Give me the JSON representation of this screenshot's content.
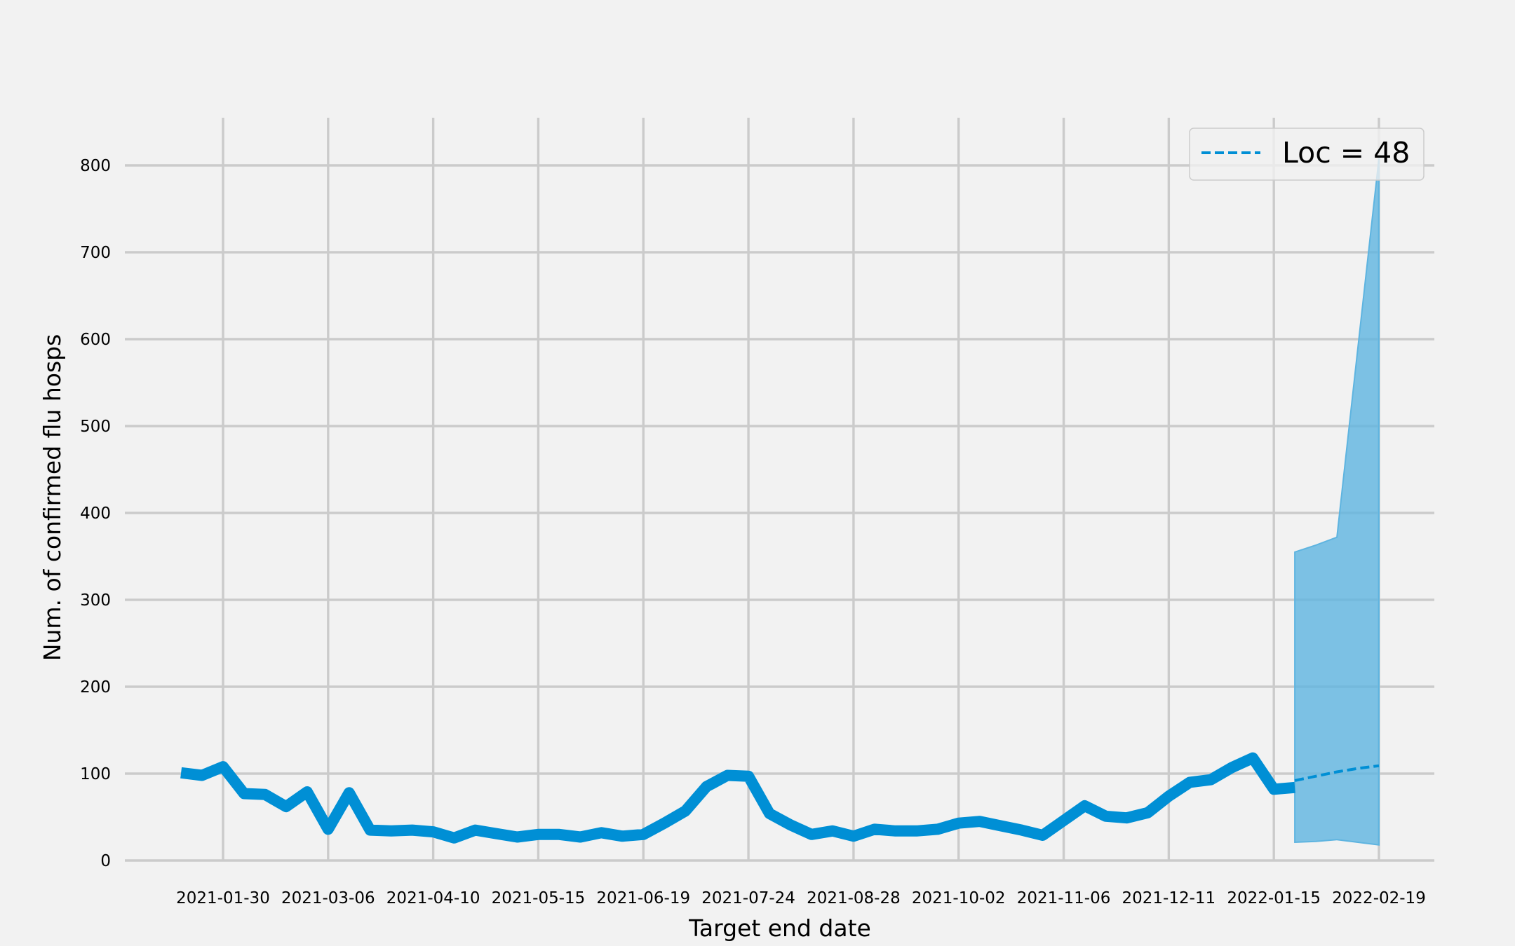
{
  "chart_data": {
    "type": "line",
    "title": "",
    "xlabel": "Target end date",
    "ylabel": "Num. of confirmed flu hosps",
    "ylim": [
      -10,
      850
    ],
    "yticks": [
      0,
      100,
      200,
      300,
      400,
      500,
      600,
      700,
      800
    ],
    "xticks": [
      "2021-01-30",
      "2021-03-06",
      "2021-04-10",
      "2021-05-15",
      "2021-06-19",
      "2021-07-24",
      "2021-08-28",
      "2021-10-02",
      "2021-11-06",
      "2021-12-11",
      "2022-01-15",
      "2022-02-19"
    ],
    "grid": true,
    "legend": {
      "position": "top-right",
      "entries": [
        "Loc = 48"
      ]
    },
    "colors": {
      "observed": "#008fd5",
      "forecast": "#008fd5",
      "band": "#5eb4e0",
      "background": "#f0f0f0",
      "grid": "#cbcbcb"
    },
    "observed": {
      "x": [
        "2021-01-16",
        "2021-01-23",
        "2021-01-30",
        "2021-02-06",
        "2021-02-13",
        "2021-02-20",
        "2021-02-27",
        "2021-03-06",
        "2021-03-13",
        "2021-03-20",
        "2021-03-27",
        "2021-04-03",
        "2021-04-10",
        "2021-04-17",
        "2021-04-24",
        "2021-05-01",
        "2021-05-08",
        "2021-05-15",
        "2021-05-22",
        "2021-05-29",
        "2021-06-05",
        "2021-06-12",
        "2021-06-19",
        "2021-06-26",
        "2021-07-03",
        "2021-07-10",
        "2021-07-17",
        "2021-07-24",
        "2021-07-31",
        "2021-08-07",
        "2021-08-14",
        "2021-08-21",
        "2021-08-28",
        "2021-09-04",
        "2021-09-11",
        "2021-09-18",
        "2021-09-25",
        "2021-10-02",
        "2021-10-09",
        "2021-10-16",
        "2021-10-23",
        "2021-10-30",
        "2021-11-06",
        "2021-11-13",
        "2021-11-20",
        "2021-11-27",
        "2021-12-04",
        "2021-12-11",
        "2021-12-18",
        "2021-12-25",
        "2022-01-01",
        "2022-01-08",
        "2022-01-15",
        "2022-01-22"
      ],
      "y": [
        101,
        98,
        108,
        77,
        76,
        62,
        79,
        36,
        78,
        35,
        34,
        35,
        33,
        26,
        35,
        31,
        27,
        30,
        30,
        27,
        32,
        28,
        30,
        43,
        57,
        85,
        98,
        97,
        54,
        41,
        30,
        34,
        28,
        36,
        34,
        34,
        36,
        43,
        45,
        40,
        35,
        29,
        46,
        63,
        51,
        49,
        55,
        74,
        90,
        93,
        107,
        118,
        82,
        84
      ]
    },
    "forecast": {
      "name": "Loc = 48",
      "x": [
        "2022-01-22",
        "2022-01-29",
        "2022-02-05",
        "2022-02-12",
        "2022-02-19"
      ],
      "y": [
        92,
        97,
        102,
        106,
        109
      ],
      "lower": [
        21,
        22,
        24,
        21,
        18
      ],
      "upper": [
        355,
        363,
        372,
        590,
        808
      ]
    }
  }
}
